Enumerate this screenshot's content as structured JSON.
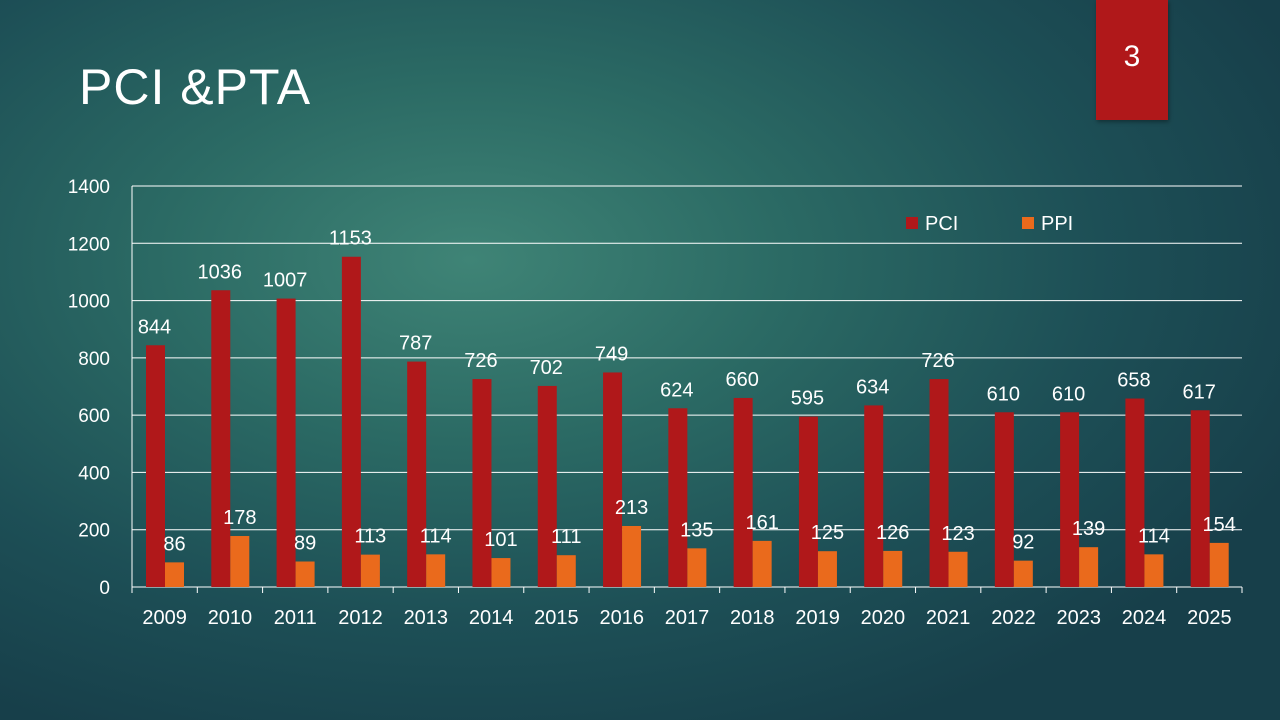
{
  "slide": {
    "title": "PCI &PTA",
    "page_number": "3"
  },
  "colors": {
    "pci": "#b0181a",
    "ppi": "#ea6a1c",
    "badge": "#b0181a"
  },
  "chart_data": {
    "type": "bar",
    "title": "",
    "xlabel": "",
    "ylabel": "",
    "ylim": [
      0,
      1400
    ],
    "yticks": [
      0,
      200,
      400,
      600,
      800,
      1000,
      1200,
      1400
    ],
    "grid": true,
    "legend_position": "top-right",
    "categories": [
      "2009",
      "2010",
      "2011",
      "2012",
      "2013",
      "2014",
      "2015",
      "2016",
      "2017",
      "2018",
      "2019",
      "2020",
      "2021",
      "2022",
      "2023",
      "2024",
      "2025"
    ],
    "series": [
      {
        "name": "PCI",
        "values": [
          844,
          1036,
          1007,
          1153,
          787,
          726,
          702,
          749,
          624,
          660,
          595,
          634,
          726,
          610,
          610,
          658,
          617
        ]
      },
      {
        "name": "PPI",
        "values": [
          86,
          178,
          89,
          113,
          114,
          101,
          111,
          213,
          135,
          161,
          125,
          126,
          123,
          92,
          139,
          114,
          154
        ]
      }
    ]
  }
}
